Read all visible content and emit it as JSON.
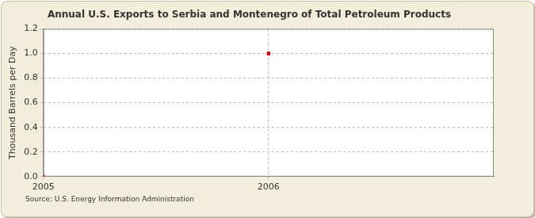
{
  "chart_data": {
    "type": "scatter",
    "title": "Annual U.S. Exports to Serbia and Montenegro of Total Petroleum Products",
    "y_label": "Thousand Barrels per Day",
    "source": "Source: U.S. Energy Information Administration",
    "x": [
      2005,
      2006
    ],
    "values": [
      0.0,
      1.0
    ],
    "color": "#cc0000",
    "marker": "square",
    "xlim": [
      2005,
      2007
    ],
    "xticks": [
      2005,
      2006
    ],
    "ylim": [
      0,
      1.2
    ],
    "yticks": [
      {
        "value": 0,
        "label": "0.0"
      },
      0.2,
      0.4,
      0.6,
      0.8,
      {
        "value": 1,
        "label": "1.0"
      },
      1.2
    ],
    "grid": true
  }
}
